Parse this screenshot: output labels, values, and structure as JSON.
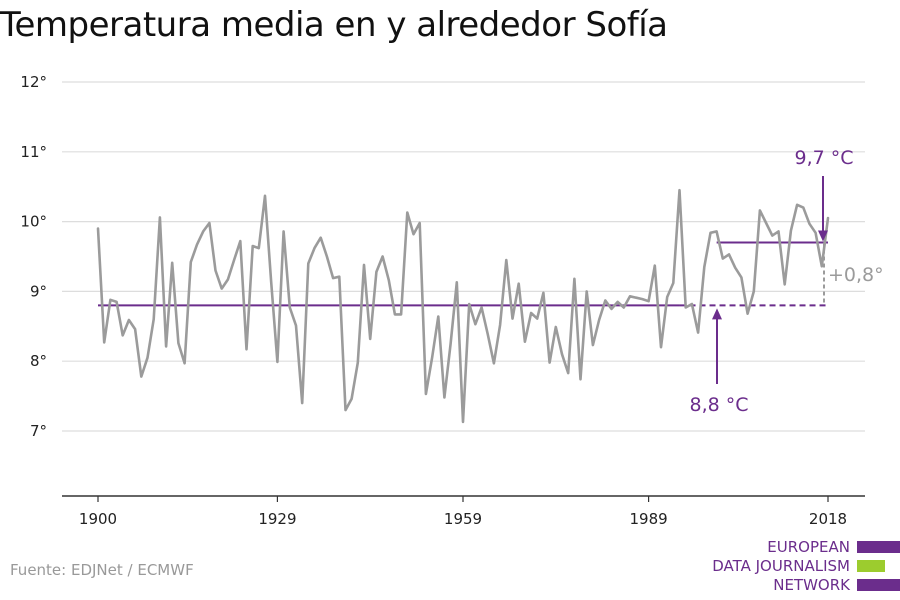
{
  "title": "Temperatura media en y alrededor Sofía",
  "source": "Fuente: EDJNet / ECMWF",
  "logo": {
    "lines": [
      "EUROPEAN",
      "DATA JOURNALISM",
      "NETWORK"
    ],
    "colors": [
      "#6b2d8c",
      "#9ccc2e",
      "#6b2d8c"
    ]
  },
  "colors": {
    "series": "#9b9b9b",
    "accent": "#6b2d8c",
    "grid": "#dddddd",
    "axis": "#333333"
  },
  "chart_data": {
    "type": "line",
    "x": [
      1900,
      1901,
      1902,
      1903,
      1904,
      1905,
      1906,
      1907,
      1908,
      1909,
      1910,
      1911,
      1912,
      1913,
      1914,
      1915,
      1916,
      1917,
      1918,
      1919,
      1920,
      1921,
      1922,
      1923,
      1924,
      1925,
      1926,
      1927,
      1928,
      1929,
      1930,
      1931,
      1932,
      1933,
      1934,
      1935,
      1936,
      1937,
      1938,
      1939,
      1940,
      1941,
      1942,
      1943,
      1944,
      1945,
      1946,
      1947,
      1948,
      1949,
      1950,
      1951,
      1952,
      1953,
      1954,
      1955,
      1956,
      1957,
      1958,
      1959,
      1960,
      1961,
      1962,
      1963,
      1964,
      1965,
      1966,
      1967,
      1968,
      1969,
      1970,
      1971,
      1972,
      1973,
      1974,
      1975,
      1976,
      1977,
      1978,
      1979,
      1980,
      1981,
      1982,
      1983,
      1984,
      1985,
      1986,
      1987,
      1988,
      1989,
      1990,
      1991,
      1992,
      1993,
      1994,
      1995,
      1996,
      1997,
      1998,
      1999,
      2000,
      2001,
      2002,
      2003,
      2004,
      2005,
      2006,
      2007,
      2008,
      2009,
      2010,
      2011,
      2012,
      2013,
      2014,
      2015,
      2016,
      2017,
      2018
    ],
    "series": [
      {
        "values": [
          9.9,
          8.27,
          8.88,
          8.85,
          8.37,
          8.59,
          8.46,
          7.78,
          8.05,
          8.6,
          10.06,
          8.21,
          9.41,
          8.26,
          7.97,
          9.42,
          9.67,
          9.86,
          9.98,
          9.3,
          9.04,
          9.17,
          9.45,
          9.72,
          8.17,
          9.65,
          9.62,
          10.37,
          9.13,
          7.99,
          9.86,
          8.77,
          8.51,
          7.4,
          9.4,
          9.62,
          9.77,
          9.5,
          9.19,
          9.21,
          7.3,
          7.46,
          7.98,
          9.38,
          8.32,
          9.28,
          9.5,
          9.16,
          8.67,
          8.67,
          10.13,
          9.82,
          9.98,
          7.53,
          8.05,
          8.64,
          7.48,
          8.25,
          9.13,
          7.13,
          8.82,
          8.53,
          8.77,
          8.39,
          7.97,
          8.52,
          9.45,
          8.61,
          9.11,
          8.28,
          8.69,
          8.61,
          8.98,
          7.98,
          8.49,
          8.1,
          7.83,
          9.18,
          7.74,
          9.0,
          8.23,
          8.59,
          8.87,
          8.75,
          8.85,
          8.77,
          8.93,
          8.91,
          8.89,
          8.86,
          9.37,
          8.2,
          8.92,
          9.12,
          10.45,
          8.77,
          8.82,
          8.41,
          9.35,
          9.84,
          9.86,
          9.47,
          9.53,
          9.34,
          9.2,
          8.68,
          9.0,
          10.16,
          9.98,
          9.8,
          9.86,
          9.1,
          9.87,
          10.24,
          10.2,
          9.97,
          9.84,
          9.36,
          10.05
        ]
      }
    ],
    "reference_lines": [
      {
        "value": 8.8,
        "label": "8,8 °C",
        "from": 1900,
        "to": 2018
      },
      {
        "value": 9.7,
        "label": "9,7 °C",
        "from": 2000,
        "to": 2018
      }
    ],
    "difference_label": "+0,8°",
    "ylim": [
      6,
      12
    ],
    "yticks": [
      7,
      8,
      9,
      10,
      11,
      12
    ],
    "ytick_labels": [
      "7°",
      "8°",
      "9°",
      "10°",
      "11°",
      "12°"
    ],
    "xticks": [
      1900,
      1929,
      1959,
      1989,
      2018
    ],
    "xtick_labels": [
      "1900",
      "1929",
      "1959",
      "1989",
      "2018"
    ],
    "xlim": [
      1894,
      2024
    ],
    "xlabel": "",
    "ylabel": "",
    "grid": true
  }
}
